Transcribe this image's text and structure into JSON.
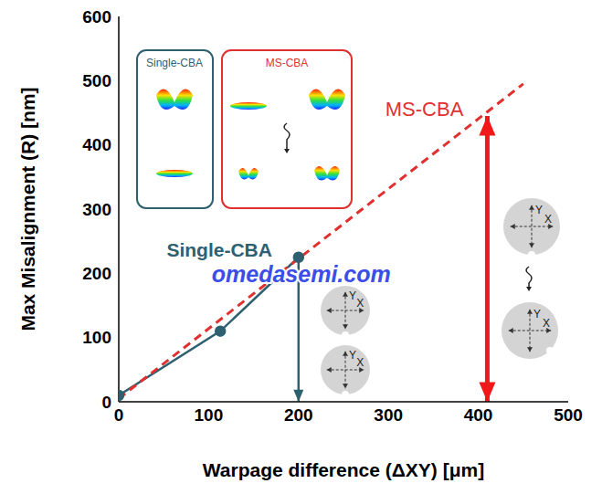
{
  "chart_data": {
    "type": "line",
    "x_label": "Warpage difference (ΔXY) [μm]",
    "y_label": "Max Misalignment (R) [nm]",
    "xlim": [
      0,
      500
    ],
    "xticks": [
      0,
      100,
      200,
      300,
      400,
      500
    ],
    "ylim": [
      0,
      600
    ],
    "yticks": [
      0,
      100,
      200,
      300,
      400,
      500,
      600
    ],
    "grid": false,
    "series": [
      {
        "name": "Single-CBA",
        "color": "#2e6070",
        "x": [
          0,
          113,
          200
        ],
        "values": [
          10,
          110,
          225
        ],
        "marker": "circle",
        "line_style": "solid"
      },
      {
        "name": "MS-CBA",
        "color": "#e0302f",
        "x": [
          0,
          450
        ],
        "values": [
          5,
          495
        ],
        "marker": "none",
        "line_style": "dashed"
      }
    ],
    "annotations": [
      {
        "text": "Single-CBA",
        "x": 112,
        "y": 237,
        "color": "#2e6070"
      },
      {
        "text": "MS-CBA",
        "x": 340,
        "y": 455,
        "color": "#e0302f"
      },
      {
        "text": "omedasemi.com",
        "x": 203,
        "y": 199,
        "color": "#3b4ee8"
      }
    ],
    "arrows": [
      {
        "x": 200,
        "from": 225,
        "to": 0,
        "color": "#2e6070",
        "double": false
      },
      {
        "x": 410,
        "from": 0,
        "to": 445,
        "color": "#f01818",
        "double": true
      }
    ],
    "insets": [
      {
        "title": "Single-CBA",
        "color": "#2e6070"
      },
      {
        "title": "MS-CBA",
        "color": "#e0302f"
      }
    ],
    "icon_axis_labels": [
      "X",
      "Y"
    ]
  }
}
